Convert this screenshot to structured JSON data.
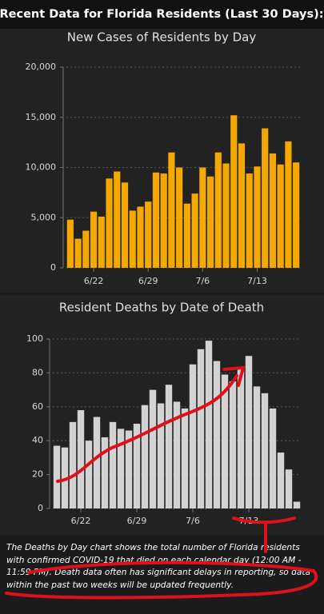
{
  "header": {
    "title": "Recent Data for Florida Residents (Last 30 Days):"
  },
  "chart_data": [
    {
      "type": "bar",
      "title": "New Cases of Residents by Day",
      "color": "#f5a800",
      "grid": true,
      "categories": [
        null,
        null,
        null,
        "6/22",
        null,
        null,
        null,
        null,
        null,
        null,
        "6/29",
        null,
        null,
        null,
        null,
        null,
        null,
        "7/6",
        null,
        null,
        null,
        null,
        null,
        null,
        "7/13",
        null,
        null,
        null,
        null,
        null
      ],
      "values": [
        4800,
        2900,
        3700,
        5600,
        5100,
        8900,
        9600,
        8500,
        5700,
        6100,
        6600,
        9500,
        9400,
        11500,
        10000,
        6400,
        7400,
        10000,
        9100,
        11500,
        10400,
        15200,
        12400,
        9400,
        10100,
        13900,
        11400,
        10300,
        12600,
        10500
      ],
      "ylim": [
        0,
        20000
      ],
      "yticks": [
        0,
        {
          "value": 5000,
          "label": "5,000"
        },
        {
          "value": 10000,
          "label": "10,000"
        },
        {
          "value": 15000,
          "label": "15,000"
        },
        {
          "value": 20000,
          "label": "20,000"
        }
      ]
    },
    {
      "type": "bar",
      "title": "Resident Deaths by Date of Death",
      "color": "#d3d3d3",
      "grid": true,
      "categories": [
        null,
        null,
        null,
        "6/22",
        null,
        null,
        null,
        null,
        null,
        null,
        "6/29",
        null,
        null,
        null,
        null,
        null,
        null,
        "7/6",
        null,
        null,
        null,
        null,
        null,
        null,
        "7/13",
        null,
        null,
        null,
        null,
        null,
        null
      ],
      "values": [
        37,
        36,
        51,
        58,
        40,
        54,
        42,
        51,
        47,
        46,
        50,
        61,
        70,
        62,
        73,
        63,
        59,
        85,
        94,
        99,
        87,
        79,
        75,
        83,
        90,
        72,
        68,
        59,
        33,
        23,
        4
      ],
      "ylim": [
        0,
        100
      ],
      "yticks": [
        0,
        20,
        40,
        60,
        80,
        100
      ]
    }
  ],
  "footnote": "The Deaths by Day chart shows the total number of Florida residents with confirmed COVID-19 that died on each calendar day (12:00 AM - 11:59 PM). Death data often has significant delays in reporting, so data within the past two weeks will be updated frequently."
}
